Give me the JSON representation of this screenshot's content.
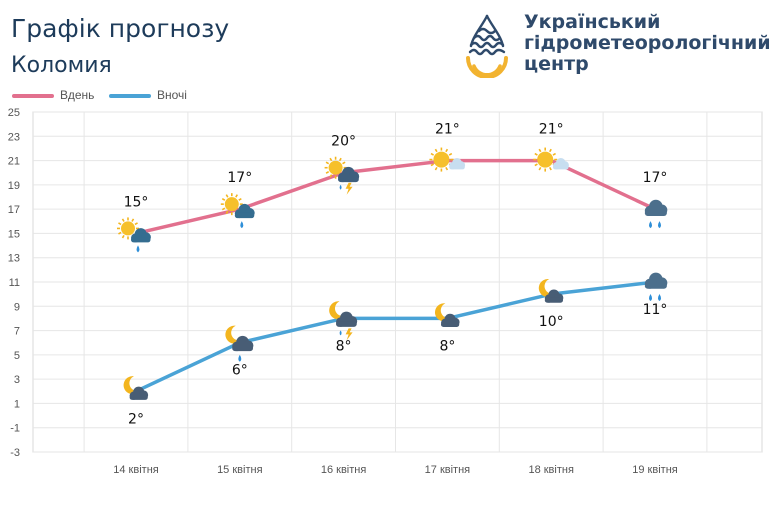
{
  "header": {
    "title": "Графік прогнозу",
    "city": "Коломия"
  },
  "logo": {
    "lines": [
      "Український",
      "гідрометеорологічний",
      "центр"
    ],
    "icon": "drop-sun-waves-icon"
  },
  "colors": {
    "day": "#e2708e",
    "night": "#4aa3d6",
    "grid": "#e6e6e6",
    "title": "#1d3b5a"
  },
  "chart_data": {
    "type": "line",
    "categories": [
      "14 квітня",
      "15 квітня",
      "16 квітня",
      "17 квітня",
      "18 квітня",
      "19 квітня"
    ],
    "ylim": [
      -3,
      25
    ],
    "yticks": [
      25,
      23,
      21,
      19,
      17,
      15,
      13,
      11,
      9,
      7,
      5,
      3,
      1,
      -1,
      -3
    ],
    "legend_position": "top-left",
    "grid": true,
    "series": [
      {
        "name": "Вдень",
        "values": [
          15,
          17,
          20,
          21,
          21,
          17
        ],
        "labels": [
          "15°",
          "17°",
          "20°",
          "21°",
          "21°",
          "17°"
        ],
        "icons": [
          "sun-cloud-rain-icon",
          "sun-cloud-rain-icon",
          "sun-cloud-thunder-icon",
          "sun-cloud-icon",
          "sun-cloud-icon",
          "cloud-rain-icon"
        ]
      },
      {
        "name": "Вночі",
        "values": [
          2,
          6,
          8,
          8,
          10,
          11
        ],
        "labels": [
          "2°",
          "6°",
          "8°",
          "8°",
          "10°",
          "11°"
        ],
        "icons": [
          "moon-cloud-icon",
          "moon-cloud-rain-icon",
          "moon-cloud-thunder-icon",
          "moon-cloud-icon",
          "moon-cloud-icon",
          "cloud-rain-icon"
        ]
      }
    ]
  }
}
